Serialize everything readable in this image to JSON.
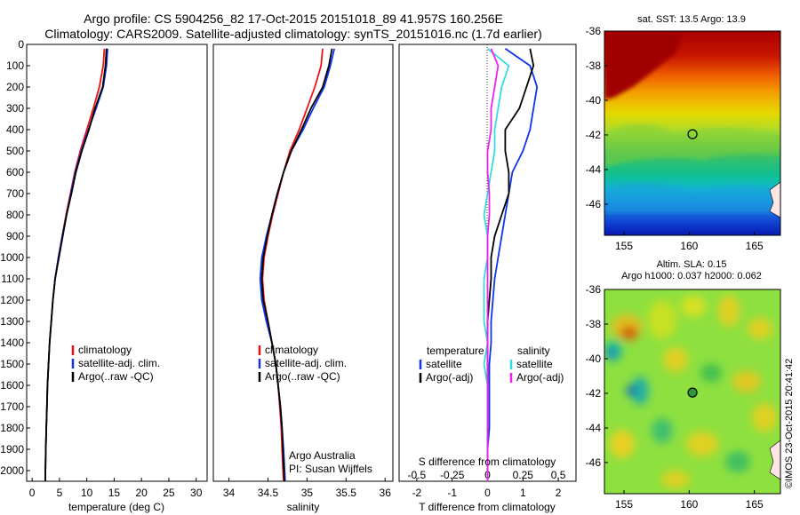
{
  "title_line1": "Argo profile: CS 5904256_82 17-Oct-2015 20151018_89 41.957S 160.256E",
  "title_line2": "Climatology: CARS2009. Satellite-adjusted climatology: synTS_20151016.nc (1.7d earlier)",
  "credit": "Argo Australia",
  "pi": "PI: Susan Wijffels",
  "imos_stamp": "©IMOS 23-Oct-2015 20:41:42",
  "colors": {
    "red": "#ee1111",
    "blue": "#1133ee",
    "black": "#000000",
    "cyan": "#33dddd",
    "magenta": "#ee22ee"
  },
  "chart_data": [
    {
      "type": "line",
      "id": "temperature",
      "xlabel": "temperature (deg C)",
      "xlim": [
        -1,
        32
      ],
      "xticks": [
        0,
        5,
        10,
        15,
        20,
        25,
        30
      ],
      "ylim": [
        0,
        2050
      ],
      "yticks": [
        0,
        100,
        200,
        300,
        400,
        500,
        600,
        700,
        800,
        900,
        1000,
        1100,
        1200,
        1300,
        1400,
        1500,
        1600,
        1700,
        1800,
        1900,
        2000
      ],
      "legend": [
        "climatology",
        "satellite-adj. clim.",
        "Argo(..raw -QC)"
      ],
      "series": [
        {
          "name": "climatology",
          "color": "red",
          "x": [
            13.2,
            13.0,
            12.3,
            11.2,
            10.0,
            8.8,
            7.8,
            7.0,
            6.2,
            5.5,
            4.8,
            4.2,
            3.8,
            3.5,
            3.2,
            3.0,
            2.8,
            2.7,
            2.6,
            2.5,
            2.4
          ],
          "y": [
            20,
            100,
            200,
            300,
            400,
            500,
            600,
            700,
            800,
            900,
            1000,
            1100,
            1200,
            1300,
            1400,
            1500,
            1600,
            1700,
            1800,
            1900,
            2050
          ]
        },
        {
          "name": "satellite-adj. clim.",
          "color": "blue",
          "x": [
            13.8,
            13.6,
            13.0,
            11.7,
            10.3,
            9.0,
            7.9,
            7.1,
            6.3,
            5.5,
            4.8,
            4.2,
            3.8,
            3.5,
            3.2,
            3.0,
            2.8,
            2.7,
            2.6,
            2.5,
            2.4
          ],
          "y": [
            20,
            100,
            200,
            300,
            400,
            500,
            600,
            700,
            800,
            900,
            1000,
            1100,
            1200,
            1300,
            1400,
            1500,
            1600,
            1700,
            1800,
            1900,
            2050
          ]
        },
        {
          "name": "Argo(..raw -QC)",
          "color": "black",
          "x": [
            13.6,
            13.4,
            12.9,
            11.5,
            10.4,
            9.1,
            8.0,
            7.2,
            6.3,
            5.6,
            4.9,
            4.2,
            3.8,
            3.5,
            3.2,
            3.0,
            2.8,
            2.7,
            2.6,
            2.5,
            2.4
          ],
          "y": [
            20,
            100,
            200,
            300,
            400,
            500,
            600,
            700,
            800,
            900,
            1000,
            1100,
            1200,
            1300,
            1400,
            1500,
            1600,
            1700,
            1800,
            1900,
            2050
          ]
        }
      ]
    },
    {
      "type": "line",
      "id": "salinity",
      "xlabel": "salinity",
      "xlim": [
        33.8,
        36.1
      ],
      "xticks": [
        34,
        34.5,
        35,
        35.5,
        36
      ],
      "ylim": [
        0,
        2050
      ],
      "legend": [
        "climatology",
        "satellite-adj. clim.",
        "Argo(..raw -QC)"
      ],
      "series": [
        {
          "name": "climatology",
          "color": "red",
          "x": [
            35.2,
            35.18,
            35.1,
            35.0,
            34.9,
            34.78,
            34.7,
            34.63,
            34.56,
            34.5,
            34.45,
            34.43,
            34.45,
            34.5,
            34.55,
            34.6,
            34.63,
            34.65,
            34.67,
            34.68,
            34.7
          ],
          "y": [
            20,
            100,
            200,
            300,
            400,
            500,
            600,
            700,
            800,
            900,
            1000,
            1100,
            1200,
            1300,
            1400,
            1500,
            1600,
            1700,
            1800,
            1900,
            2050
          ]
        },
        {
          "name": "satellite-adj. clim.",
          "color": "blue",
          "x": [
            35.35,
            35.3,
            35.22,
            35.08,
            34.95,
            34.8,
            34.7,
            34.62,
            34.55,
            34.48,
            34.42,
            34.4,
            34.42,
            34.48,
            34.55,
            34.6,
            34.63,
            34.66,
            34.68,
            34.7,
            34.72
          ],
          "y": [
            20,
            100,
            200,
            300,
            400,
            500,
            600,
            700,
            800,
            900,
            1000,
            1100,
            1200,
            1300,
            1400,
            1500,
            1600,
            1700,
            1800,
            1900,
            2050
          ]
        },
        {
          "name": "Argo(..raw -QC)",
          "color": "black",
          "x": [
            35.32,
            35.28,
            35.2,
            35.05,
            34.93,
            34.8,
            34.7,
            34.62,
            34.55,
            34.49,
            34.44,
            34.42,
            34.44,
            34.5,
            34.55,
            34.6,
            34.63,
            34.66,
            34.68,
            34.69,
            34.71
          ],
          "y": [
            20,
            100,
            200,
            300,
            400,
            500,
            600,
            700,
            800,
            900,
            1000,
            1100,
            1200,
            1300,
            1400,
            1500,
            1600,
            1700,
            1800,
            1900,
            2050
          ]
        }
      ]
    },
    {
      "type": "line",
      "id": "difference",
      "xlabel": "T difference from climatology",
      "xlabel_top": "S difference from climatology",
      "xlim": [
        -2.5,
        2.5
      ],
      "xticks": [
        -2,
        -1,
        0,
        1,
        2
      ],
      "xticks_s": [
        "-0.5",
        "-0.25",
        "0",
        "0.25",
        "0.5"
      ],
      "ylim": [
        0,
        2050
      ],
      "legend_temperature_title": "temperature",
      "legend_salinity_title": "salinity",
      "legend": [
        "satellite",
        "Argo(-adj)",
        "satellite",
        "Argo(-adj)"
      ],
      "series": [
        {
          "name": "T satellite",
          "color": "blue",
          "x": [
            0.5,
            1.2,
            1.4,
            1.3,
            1.2,
            1.0,
            0.7,
            0.6,
            0.5,
            0.4,
            0.3,
            0.2,
            0.15,
            0.1,
            0.1,
            0.05,
            0.05,
            0.05,
            0.05,
            0.0,
            0.0
          ],
          "y": [
            20,
            100,
            200,
            300,
            400,
            500,
            600,
            700,
            800,
            900,
            1000,
            1100,
            1200,
            1300,
            1400,
            1500,
            1600,
            1700,
            1800,
            1900,
            2050
          ]
        },
        {
          "name": "T Argo(-adj)",
          "color": "black",
          "x": [
            1.2,
            1.3,
            1.1,
            0.9,
            0.5,
            0.5,
            0.6,
            0.6,
            0.4,
            0.2,
            0.1,
            0.1,
            0.05,
            0.0,
            0.0,
            0.0,
            0.0,
            0.0,
            0.0,
            0.0,
            0.0
          ],
          "y": [
            20,
            100,
            200,
            300,
            400,
            500,
            600,
            700,
            800,
            900,
            1000,
            1100,
            1200,
            1300,
            1400,
            1500,
            1600,
            1700,
            1800,
            1900,
            2050
          ]
        },
        {
          "name": "S satellite",
          "color": "cyan",
          "x": [
            0.0,
            0.6,
            0.4,
            0.3,
            0.2,
            0.2,
            0.1,
            0.0,
            -0.1,
            0.0,
            0.0,
            -0.1,
            -0.1,
            -0.1,
            0.0,
            -0.1,
            0.0,
            0.0,
            0.0,
            0.0,
            0.0
          ],
          "y": [
            20,
            100,
            200,
            300,
            400,
            500,
            600,
            700,
            800,
            900,
            1000,
            1100,
            1200,
            1300,
            1400,
            1500,
            1600,
            1700,
            1800,
            1900,
            2050
          ]
        },
        {
          "name": "S Argo(-adj)",
          "color": "magenta",
          "x": [
            0.1,
            0.3,
            0.2,
            0.1,
            0.1,
            0.0,
            0.0,
            0.05,
            0.05,
            0.0,
            0.0,
            0.0,
            0.0,
            0.0,
            0.0,
            0.0,
            0.0,
            0.0,
            0.0,
            0.0,
            0.0
          ],
          "y": [
            20,
            100,
            200,
            300,
            400,
            500,
            600,
            700,
            800,
            900,
            1000,
            1100,
            1200,
            1300,
            1400,
            1500,
            1600,
            1700,
            1800,
            1900,
            2050
          ]
        }
      ]
    },
    {
      "type": "heatmap",
      "id": "sst_map",
      "title": "sat. SST: 13.5 Argo: 13.9",
      "xticks": [
        155,
        160,
        165
      ],
      "yticks": [
        -36,
        -38,
        -40,
        -42,
        -44,
        -46
      ],
      "xlim": [
        153.5,
        167
      ],
      "ylim": [
        -47.8,
        -36
      ],
      "marker": {
        "lon": 160.256,
        "lat": -41.957
      }
    },
    {
      "type": "heatmap",
      "id": "sla_map",
      "title_line1": "Altim. SLA: 0.15",
      "title_line2": "Argo h1000: 0.037 h2000: 0.062",
      "xticks": [
        155,
        160,
        165
      ],
      "yticks": [
        -36,
        -38,
        -40,
        -42,
        -44,
        -46
      ],
      "xlim": [
        153.5,
        167
      ],
      "ylim": [
        -47.8,
        -36
      ],
      "marker": {
        "lon": 160.256,
        "lat": -41.957
      }
    }
  ]
}
